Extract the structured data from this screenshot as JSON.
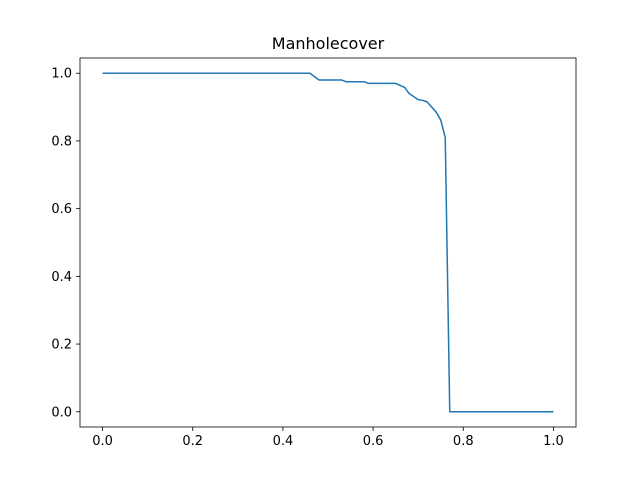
{
  "chart_data": {
    "type": "line",
    "title": "Manholecover",
    "xlabel": "",
    "ylabel": "",
    "xlim": [
      -0.05,
      1.05
    ],
    "ylim": [
      -0.045,
      1.045
    ],
    "xticks": [
      0.0,
      0.2,
      0.4,
      0.6,
      0.8,
      1.0
    ],
    "xtick_labels": [
      "0.0",
      "0.2",
      "0.4",
      "0.6",
      "0.8",
      "1.0"
    ],
    "yticks": [
      0.0,
      0.2,
      0.4,
      0.6,
      0.8,
      1.0
    ],
    "ytick_labels": [
      "0.0",
      "0.2",
      "0.4",
      "0.6",
      "0.8",
      "1.0"
    ],
    "grid": false,
    "colors": {
      "line": "#1f77b4",
      "axis": "#000000"
    },
    "series": [
      {
        "x": [
          0.0,
          0.46,
          0.48,
          0.53,
          0.54,
          0.58,
          0.59,
          0.65,
          0.67,
          0.68,
          0.7,
          0.71,
          0.72,
          0.73,
          0.74,
          0.75,
          0.76,
          0.77,
          0.78,
          1.0
        ],
        "y": [
          1.0,
          1.0,
          0.98,
          0.98,
          0.975,
          0.975,
          0.97,
          0.97,
          0.958,
          0.94,
          0.922,
          0.92,
          0.915,
          0.9,
          0.885,
          0.862,
          0.81,
          0.0,
          0.0,
          0.0
        ]
      }
    ]
  }
}
